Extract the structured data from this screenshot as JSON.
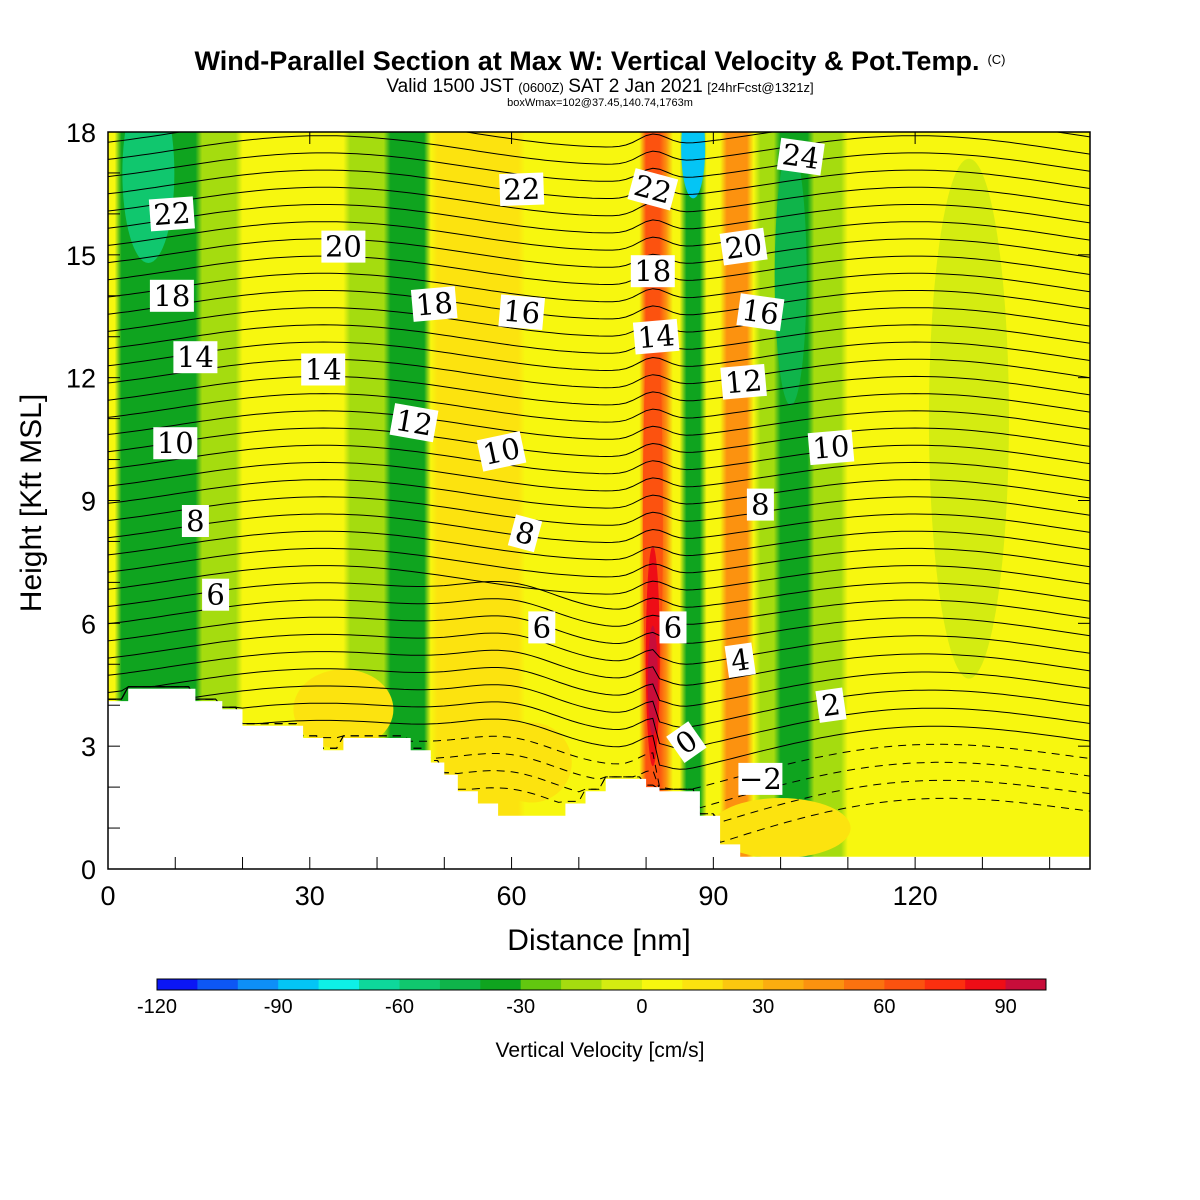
{
  "title": {
    "main": "Wind-Parallel Section at Max W: Vertical Velocity & Pot.Temp.",
    "main_mark": "(C)",
    "valid_prefix": "Valid 1500 JST",
    "valid_utc": "(0600Z)",
    "valid_date": "SAT 2 Jan 2021",
    "forecast": "[24hrFcst@1321z]",
    "boxwmax": "boxWmax=102@37.45,140.74,1763m"
  },
  "colors": {
    "white_background": "#ffffff",
    "terrain_fill": "#ffffff",
    "contour_line": "#000000",
    "colorbar": [
      "#0b16f5",
      "#0d57f5",
      "#0e8ff7",
      "#04c5f5",
      "#0ef0e6",
      "#0ed89b",
      "#10c76e",
      "#0fb44a",
      "#0fa41f",
      "#62c70f",
      "#a5dc0f",
      "#d4ec11",
      "#f7f70f",
      "#fce30f",
      "#fcc70f",
      "#fcad0f",
      "#fc920f",
      "#fc720f",
      "#fc520f",
      "#fc2f0f",
      "#ee0d16",
      "#c80d3a",
      "#a30d54",
      "#7e0a6e",
      "#5a0a8a"
    ]
  },
  "chart_data": {
    "type": "heatmap",
    "title": "Wind-Parallel Section at Max W: Vertical Velocity & Pot.Temp.",
    "xlabel": "Distance [nm]",
    "ylabel": "Height [Kft MSL]",
    "xlim": [
      0,
      146
    ],
    "ylim": [
      0,
      18
    ],
    "xticks": [
      0,
      30,
      60,
      90,
      120
    ],
    "yticks": [
      0,
      3,
      6,
      9,
      12,
      15,
      18
    ],
    "colorbar": {
      "label": "Vertical Velocity [cm/s]",
      "min": -120,
      "max": 100,
      "step": 10,
      "tick_values": [
        -120,
        -90,
        -60,
        -30,
        0,
        30,
        60,
        90
      ]
    },
    "updraft_max": {
      "value": 102,
      "lat": 37.45,
      "lon": 140.74,
      "height_m": 1763
    },
    "updraft_core_x": 81,
    "updraft_band_x": [
      [
        80,
        83
      ],
      [
        92,
        95
      ]
    ],
    "downdraft_band_x": [
      [
        2,
        13
      ],
      [
        42,
        47
      ],
      [
        86,
        88
      ],
      [
        100,
        104
      ]
    ],
    "terrain": [
      [
        0,
        4.1
      ],
      [
        3,
        4.1
      ],
      [
        3,
        4.4
      ],
      [
        13,
        4.4
      ],
      [
        13,
        4.1
      ],
      [
        17,
        4.1
      ],
      [
        17,
        3.9
      ],
      [
        20,
        3.9
      ],
      [
        20,
        3.5
      ],
      [
        29,
        3.5
      ],
      [
        29,
        3.2
      ],
      [
        32,
        3.2
      ],
      [
        32,
        2.9
      ],
      [
        35,
        2.9
      ],
      [
        35,
        3.2
      ],
      [
        45,
        3.2
      ],
      [
        45,
        2.9
      ],
      [
        48,
        2.9
      ],
      [
        48,
        2.6
      ],
      [
        50,
        2.6
      ],
      [
        50,
        2.3
      ],
      [
        52,
        2.3
      ],
      [
        52,
        1.9
      ],
      [
        55,
        1.9
      ],
      [
        55,
        1.6
      ],
      [
        58,
        1.6
      ],
      [
        58,
        1.3
      ],
      [
        68,
        1.3
      ],
      [
        68,
        1.6
      ],
      [
        71,
        1.6
      ],
      [
        71,
        1.9
      ],
      [
        74,
        1.9
      ],
      [
        74,
        2.2
      ],
      [
        80,
        2.2
      ],
      [
        80,
        2.0
      ],
      [
        82,
        2.0
      ],
      [
        82,
        1.9
      ],
      [
        88,
        1.9
      ],
      [
        88,
        1.3
      ],
      [
        91,
        1.3
      ],
      [
        91,
        0.6
      ],
      [
        94,
        0.6
      ],
      [
        94,
        0.3
      ],
      [
        146,
        0.3
      ]
    ],
    "contour_labels": [
      {
        "text": "22",
        "x": 9.5,
        "y": 16.0,
        "angle": -4
      },
      {
        "text": "18",
        "x": 9.5,
        "y": 14.0,
        "angle": 0
      },
      {
        "text": "14",
        "x": 13,
        "y": 12.5,
        "angle": 0
      },
      {
        "text": "10",
        "x": 10,
        "y": 10.4,
        "angle": 0
      },
      {
        "text": "8",
        "x": 13,
        "y": 8.5,
        "angle": 0
      },
      {
        "text": "6",
        "x": 16,
        "y": 6.7,
        "angle": 0
      },
      {
        "text": "20",
        "x": 35,
        "y": 15.2,
        "angle": 0
      },
      {
        "text": "14",
        "x": 32,
        "y": 12.2,
        "angle": 0
      },
      {
        "text": "18",
        "x": 48.5,
        "y": 13.8,
        "angle": -5
      },
      {
        "text": "12",
        "x": 45.5,
        "y": 10.9,
        "angle": 10
      },
      {
        "text": "22",
        "x": 61.5,
        "y": 16.6,
        "angle": -2
      },
      {
        "text": "16",
        "x": 61.5,
        "y": 13.6,
        "angle": 5
      },
      {
        "text": "10",
        "x": 58.5,
        "y": 10.2,
        "angle": -12
      },
      {
        "text": "8",
        "x": 62,
        "y": 8.2,
        "angle": 15
      },
      {
        "text": "6",
        "x": 64.5,
        "y": 5.9,
        "angle": 0
      },
      {
        "text": "22",
        "x": 81,
        "y": 16.6,
        "angle": 15
      },
      {
        "text": "18",
        "x": 81,
        "y": 14.6,
        "angle": 0
      },
      {
        "text": "14",
        "x": 81.5,
        "y": 13.0,
        "angle": -5
      },
      {
        "text": "6",
        "x": 84,
        "y": 5.9,
        "angle": 0
      },
      {
        "text": "0",
        "x": 86,
        "y": 3.1,
        "angle": -35
      },
      {
        "text": "24",
        "x": 103,
        "y": 17.4,
        "angle": 8
      },
      {
        "text": "20",
        "x": 94.5,
        "y": 15.2,
        "angle": -8
      },
      {
        "text": "16",
        "x": 97,
        "y": 13.6,
        "angle": 8
      },
      {
        "text": "12",
        "x": 94.5,
        "y": 11.9,
        "angle": -5
      },
      {
        "text": "10",
        "x": 107.5,
        "y": 10.3,
        "angle": -5
      },
      {
        "text": "8",
        "x": 97,
        "y": 8.9,
        "angle": 0
      },
      {
        "text": "4",
        "x": 94,
        "y": 5.1,
        "angle": -8
      },
      {
        "text": "2",
        "x": 107.5,
        "y": 4.0,
        "angle": -8
      },
      {
        "text": "−2",
        "x": 97,
        "y": 2.2,
        "angle": 0
      }
    ]
  }
}
